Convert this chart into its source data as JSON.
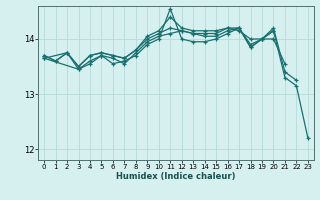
{
  "xlabel": "Humidex (Indice chaleur)",
  "ylabel": "",
  "bg_color": "#d6f0f0",
  "grid_color": "#b8dada",
  "line_color": "#1a7070",
  "xlim": [
    -0.5,
    23.5
  ],
  "ylim": [
    11.8,
    14.6
  ],
  "yticks": [
    12,
    13,
    14
  ],
  "xticks": [
    0,
    1,
    2,
    3,
    4,
    5,
    6,
    7,
    8,
    9,
    10,
    11,
    12,
    13,
    14,
    15,
    16,
    17,
    18,
    19,
    20,
    21,
    22,
    23
  ],
  "lines": [
    {
      "x": [
        0,
        1,
        2,
        3,
        4,
        5,
        6,
        7,
        8,
        9,
        10,
        11,
        12,
        13,
        14,
        15,
        16,
        17,
        18,
        19,
        20,
        21,
        22
      ],
      "y": [
        13.7,
        13.6,
        13.75,
        13.5,
        13.7,
        13.75,
        13.7,
        13.65,
        13.8,
        14.05,
        14.15,
        14.4,
        14.2,
        14.15,
        14.15,
        14.15,
        14.2,
        14.2,
        13.9,
        14.0,
        14.2,
        13.4,
        13.25
      ]
    },
    {
      "x": [
        0,
        1,
        2,
        3,
        4,
        5,
        6,
        7,
        8,
        9,
        10,
        11,
        12,
        13,
        14,
        15,
        16,
        17,
        18,
        19,
        20,
        21
      ],
      "y": [
        13.7,
        13.6,
        13.75,
        13.5,
        13.7,
        13.75,
        13.7,
        13.65,
        13.8,
        14.0,
        14.1,
        14.2,
        14.15,
        14.1,
        14.1,
        14.1,
        14.2,
        14.15,
        14.0,
        14.0,
        14.0,
        13.55
      ]
    },
    {
      "x": [
        0,
        2,
        3,
        4,
        5,
        6,
        7,
        8,
        9,
        10,
        11,
        12,
        13,
        14,
        15,
        16,
        17,
        18,
        19,
        20
      ],
      "y": [
        13.65,
        13.75,
        13.45,
        13.6,
        13.7,
        13.65,
        13.55,
        13.75,
        13.95,
        14.05,
        14.1,
        14.15,
        14.1,
        14.05,
        14.05,
        14.15,
        14.2,
        13.85,
        14.0,
        14.15
      ]
    },
    {
      "x": [
        0,
        3,
        4,
        5,
        6,
        7,
        8,
        9,
        10,
        11,
        12,
        13,
        14,
        15,
        16,
        17,
        18,
        19,
        20,
        21,
        22,
        23
      ],
      "y": [
        13.65,
        13.45,
        13.55,
        13.7,
        13.55,
        13.6,
        13.7,
        13.9,
        14.0,
        14.55,
        14.0,
        13.95,
        13.95,
        14.0,
        14.1,
        14.2,
        13.85,
        14.0,
        14.15,
        13.3,
        13.15,
        12.2
      ]
    }
  ]
}
